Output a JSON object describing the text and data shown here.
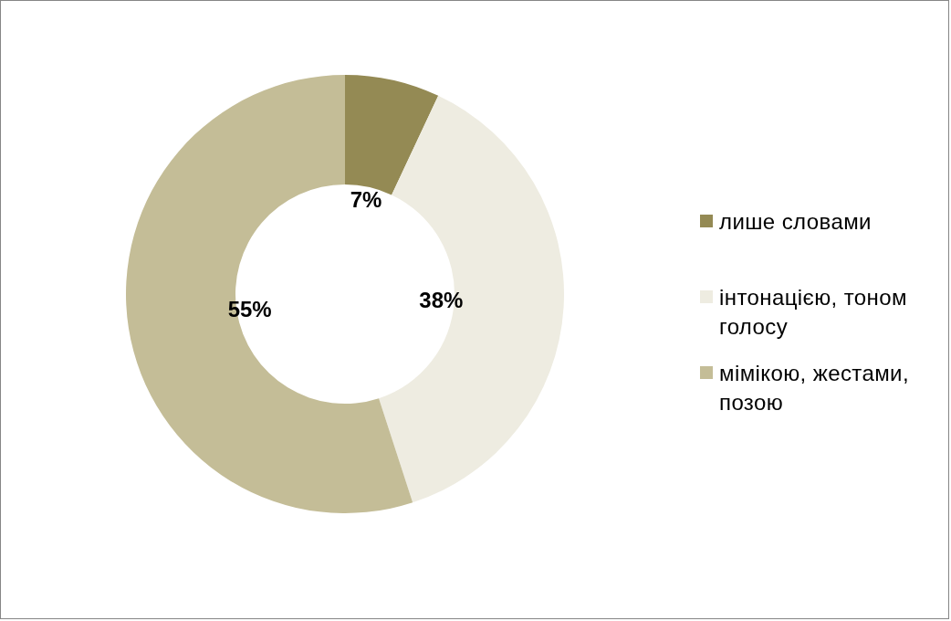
{
  "chart_data": {
    "type": "donut",
    "categories": [
      "лише словами",
      "інтонацією, тоном голосу",
      "мімікою, жестами, позою"
    ],
    "values": [
      7,
      38,
      55
    ],
    "colors": [
      "#948a54",
      "#eeece1",
      "#c4bd97"
    ],
    "value_labels": [
      "7%",
      "38%",
      "55%"
    ],
    "legend": "right"
  }
}
